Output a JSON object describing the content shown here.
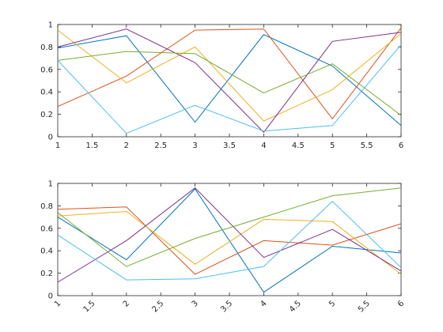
{
  "chart_data": [
    {
      "type": "line",
      "title": "",
      "xlabel": "",
      "ylabel": "",
      "xlim": [
        1,
        6
      ],
      "ylim": [
        0,
        1
      ],
      "grid": false,
      "x_ticks": [
        "1",
        "1.5",
        "2",
        "2.5",
        "3",
        "3.5",
        "4",
        "4.5",
        "5",
        "5.5",
        "6"
      ],
      "y_ticks": [
        "0",
        "0.2",
        "0.4",
        "0.6",
        "0.8",
        "1"
      ],
      "x": [
        1,
        2,
        3,
        4,
        5,
        6
      ],
      "series": [
        {
          "color": "#0072BD",
          "values": [
            0.79,
            0.9,
            0.13,
            0.91,
            0.63,
            0.1
          ]
        },
        {
          "color": "#D95319",
          "values": [
            0.27,
            0.54,
            0.95,
            0.96,
            0.16,
            0.97
          ]
        },
        {
          "color": "#EDB120",
          "values": [
            0.95,
            0.48,
            0.8,
            0.14,
            0.42,
            0.92
          ]
        },
        {
          "color": "#7E2F8E",
          "values": [
            0.8,
            0.96,
            0.66,
            0.04,
            0.85,
            0.93
          ]
        },
        {
          "color": "#77AC30",
          "values": [
            0.68,
            0.76,
            0.74,
            0.39,
            0.65,
            0.19
          ]
        },
        {
          "color": "#4DBEEE",
          "values": [
            0.68,
            0.03,
            0.28,
            0.05,
            0.1,
            0.82
          ]
        }
      ]
    },
    {
      "type": "line",
      "title": "",
      "xlabel": "",
      "ylabel": "",
      "xlim": [
        1,
        6
      ],
      "ylim": [
        0,
        1
      ],
      "grid": false,
      "x_tick_rotation": 45,
      "x_ticks": [
        "1",
        "1.5",
        "2",
        "2.5",
        "3",
        "3.5",
        "4",
        "4.5",
        "5",
        "5.5",
        "6"
      ],
      "y_ticks": [
        "0",
        "0.2",
        "0.4",
        "0.6",
        "0.8",
        "1"
      ],
      "x": [
        1,
        2,
        3,
        4,
        5,
        6
      ],
      "series": [
        {
          "color": "#0072BD",
          "values": [
            0.7,
            0.32,
            0.95,
            0.03,
            0.44,
            0.38
          ]
        },
        {
          "color": "#D95319",
          "values": [
            0.77,
            0.79,
            0.19,
            0.49,
            0.45,
            0.64
          ]
        },
        {
          "color": "#EDB120",
          "values": [
            0.71,
            0.75,
            0.28,
            0.68,
            0.66,
            0.19
          ]
        },
        {
          "color": "#7E2F8E",
          "values": [
            0.12,
            0.49,
            0.96,
            0.34,
            0.59,
            0.22
          ]
        },
        {
          "color": "#77AC30",
          "values": [
            0.74,
            0.26,
            0.51,
            0.7,
            0.89,
            0.96
          ]
        },
        {
          "color": "#4DBEEE",
          "values": [
            0.54,
            0.14,
            0.15,
            0.26,
            0.84,
            0.25
          ]
        }
      ]
    }
  ]
}
